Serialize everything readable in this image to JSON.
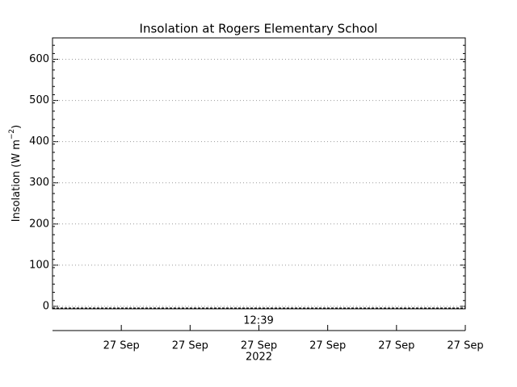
{
  "chart_data": {
    "type": "line",
    "title": "Insolation at Rogers Elementary School",
    "y_label": {
      "text": "Insolation (W m",
      "superscript": "−2",
      "close": ")"
    },
    "series": [],
    "ylim": [
      -6,
      652
    ],
    "yticks": [
      0,
      100,
      200,
      300,
      400,
      500,
      600
    ],
    "grid": true,
    "zero_line": true,
    "annotation": "12:39",
    "xlim": [
      0,
      6
    ],
    "xticks": [
      {
        "value": 1,
        "label": "27 Sep"
      },
      {
        "value": 2,
        "label": "27 Sep"
      },
      {
        "value": 3,
        "label": "27 Sep"
      },
      {
        "value": 4,
        "label": "27 Sep"
      },
      {
        "value": 5,
        "label": "27 Sep"
      },
      {
        "value": 6,
        "label": "27 Sep"
      }
    ],
    "year": "2022"
  }
}
